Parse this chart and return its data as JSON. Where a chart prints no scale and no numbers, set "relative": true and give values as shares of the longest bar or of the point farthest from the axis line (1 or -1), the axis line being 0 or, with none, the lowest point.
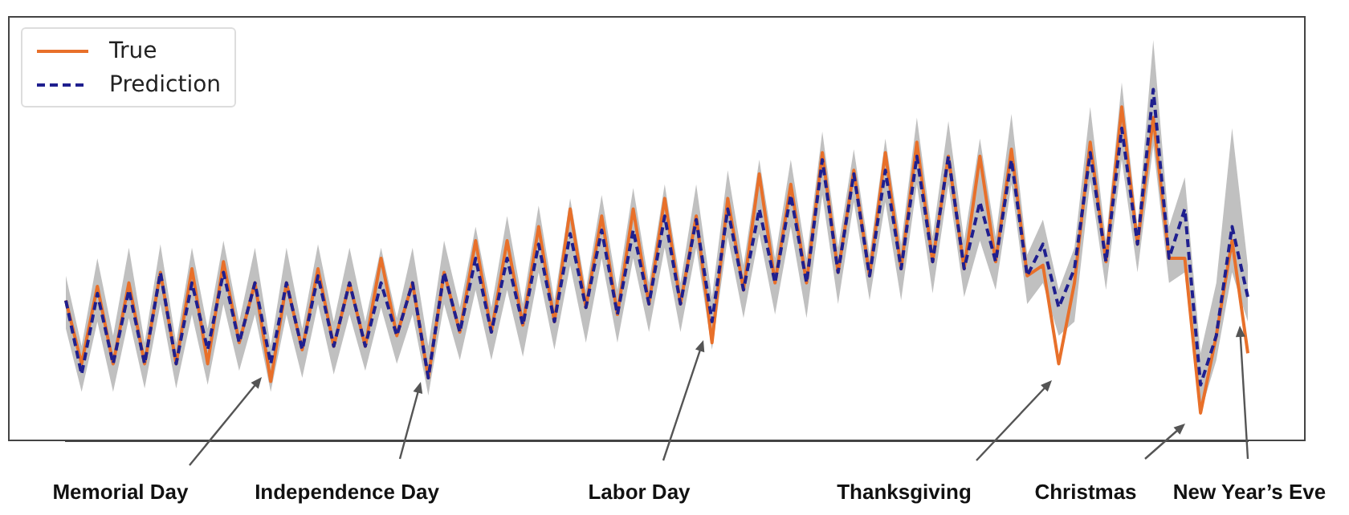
{
  "chart_data": {
    "type": "line",
    "relative": true,
    "grid": false,
    "legend": "top left",
    "categories": [
      null,
      null,
      null,
      null,
      null,
      null,
      null,
      null,
      null,
      null,
      null,
      null,
      null,
      null,
      null,
      null,
      null,
      null,
      null,
      null,
      null,
      null,
      null,
      null,
      null,
      null,
      null,
      null,
      null,
      null,
      null,
      null,
      null,
      null,
      null,
      null,
      null,
      null,
      null,
      null,
      null,
      null,
      null,
      null,
      null,
      null,
      null,
      null,
      null,
      null,
      null,
      null,
      null,
      null,
      null,
      null,
      null,
      null,
      null,
      null,
      null,
      null,
      null,
      null,
      null,
      null,
      null,
      null,
      null,
      null,
      null,
      null,
      null,
      null,
      null,
      null
    ],
    "series": [
      {
        "name": "True",
        "color": "#e8702a",
        "line_style": "solid",
        "values": [
          0.4,
          0.22,
          0.44,
          0.22,
          0.45,
          0.22,
          0.48,
          0.22,
          0.49,
          0.22,
          0.51,
          0.28,
          0.45,
          0.17,
          0.45,
          0.26,
          0.49,
          0.27,
          0.45,
          0.27,
          0.52,
          0.3,
          0.45,
          0.18,
          0.48,
          0.31,
          0.57,
          0.31,
          0.57,
          0.33,
          0.61,
          0.34,
          0.66,
          0.38,
          0.64,
          0.36,
          0.66,
          0.39,
          0.69,
          0.39,
          0.64,
          0.28,
          0.69,
          0.43,
          0.76,
          0.45,
          0.73,
          0.45,
          0.82,
          0.48,
          0.77,
          0.47,
          0.82,
          0.49,
          0.85,
          0.51,
          0.81,
          0.49,
          0.81,
          0.51,
          0.83,
          0.47,
          0.5,
          0.22,
          0.45,
          0.85,
          0.51,
          0.95,
          0.56,
          0.92,
          0.52,
          0.52,
          0.08,
          0.3,
          0.57,
          0.25
        ]
      },
      {
        "name": "Prediction",
        "color": "#1f1f8f",
        "line_style": "dashed",
        "values": [
          0.4,
          0.19,
          0.42,
          0.22,
          0.43,
          0.22,
          0.48,
          0.22,
          0.45,
          0.26,
          0.48,
          0.28,
          0.45,
          0.22,
          0.45,
          0.26,
          0.47,
          0.27,
          0.45,
          0.27,
          0.45,
          0.3,
          0.45,
          0.18,
          0.48,
          0.31,
          0.52,
          0.31,
          0.52,
          0.33,
          0.56,
          0.34,
          0.59,
          0.38,
          0.6,
          0.36,
          0.6,
          0.39,
          0.64,
          0.39,
          0.63,
          0.34,
          0.66,
          0.43,
          0.66,
          0.45,
          0.7,
          0.45,
          0.8,
          0.48,
          0.76,
          0.47,
          0.77,
          0.49,
          0.81,
          0.51,
          0.81,
          0.49,
          0.68,
          0.51,
          0.8,
          0.47,
          0.56,
          0.38,
          0.49,
          0.82,
          0.51,
          0.89,
          0.56,
          1,
          0.52,
          0.66,
          0.16,
          0.3,
          0.61,
          0.41
        ],
        "lower": [
          0.32,
          0.14,
          0.34,
          0.14,
          0.35,
          0.15,
          0.39,
          0.15,
          0.36,
          0.16,
          0.39,
          0.2,
          0.36,
          0.14,
          0.36,
          0.18,
          0.39,
          0.19,
          0.36,
          0.2,
          0.38,
          0.22,
          0.36,
          0.13,
          0.39,
          0.23,
          0.43,
          0.23,
          0.43,
          0.24,
          0.48,
          0.26,
          0.5,
          0.28,
          0.52,
          0.28,
          0.52,
          0.31,
          0.55,
          0.31,
          0.55,
          0.26,
          0.58,
          0.35,
          0.59,
          0.36,
          0.61,
          0.35,
          0.7,
          0.39,
          0.68,
          0.4,
          0.68,
          0.4,
          0.73,
          0.42,
          0.73,
          0.41,
          0.57,
          0.43,
          0.73,
          0.39,
          0.45,
          0.3,
          0.34,
          0.74,
          0.43,
          0.8,
          0.48,
          0.84,
          0.45,
          0.48,
          0.08,
          0.23,
          0.48,
          0.34
        ],
        "upper": [
          0.47,
          0.27,
          0.52,
          0.3,
          0.55,
          0.28,
          0.56,
          0.28,
          0.55,
          0.32,
          0.57,
          0.34,
          0.55,
          0.27,
          0.55,
          0.32,
          0.56,
          0.34,
          0.55,
          0.34,
          0.55,
          0.35,
          0.55,
          0.27,
          0.57,
          0.38,
          0.61,
          0.38,
          0.64,
          0.39,
          0.67,
          0.4,
          0.69,
          0.43,
          0.7,
          0.43,
          0.72,
          0.45,
          0.73,
          0.45,
          0.73,
          0.41,
          0.77,
          0.5,
          0.8,
          0.52,
          0.8,
          0.52,
          0.88,
          0.55,
          0.83,
          0.53,
          0.86,
          0.56,
          0.92,
          0.58,
          0.91,
          0.57,
          0.86,
          0.58,
          0.93,
          0.53,
          0.63,
          0.43,
          0.55,
          0.95,
          0.57,
          1.02,
          0.61,
          1.14,
          0.61,
          0.75,
          0.25,
          0.45,
          0.89,
          0.5
        ]
      }
    ],
    "annotations": [
      "Memorial Day",
      "Independence Day",
      "Labor Day",
      "Thanksgiving",
      "Christmas",
      "New Year’s Eve"
    ]
  }
}
